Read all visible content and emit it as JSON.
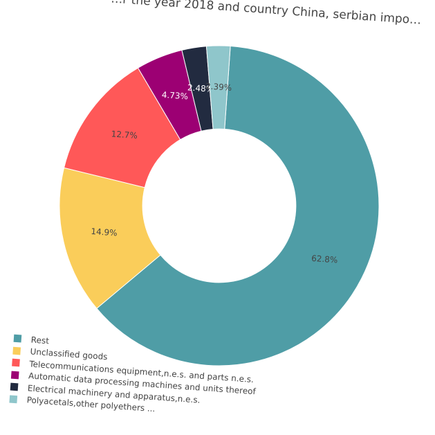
{
  "chart_data": {
    "type": "pie",
    "hole": 0.48,
    "title": "…r the year 2018 and country China, serbian impo…",
    "slices": [
      {
        "label": "Rest",
        "value": 62.8,
        "text": "62.8%",
        "color": "#4f9da6",
        "text_color": "#444444"
      },
      {
        "label": "Unclassified goods",
        "value": 14.9,
        "text": "14.9%",
        "color": "#facd5a",
        "text_color": "#444444"
      },
      {
        "label": "Telecommunications equipment,n.e.s. and parts n.e.s.",
        "value": 12.7,
        "text": "12.7%",
        "color": "#ff5858",
        "text_color": "#444444"
      },
      {
        "label": "Automatic data processing machines and units thereof",
        "value": 4.73,
        "text": "4.73%",
        "color": "#9c0073",
        "text_color": "#ffffff"
      },
      {
        "label": "Electrical machinery and apparatus,n.e.s.",
        "value": 2.48,
        "text": "2.48%",
        "color": "#222b40",
        "text_color": "#ffffff"
      },
      {
        "label": "Polyacetals,other polyethers ...",
        "value": 2.39,
        "text": "2.39%",
        "color": "#8fc6cb",
        "text_color": "#444444"
      }
    ],
    "legend_position": "bottom-left"
  }
}
